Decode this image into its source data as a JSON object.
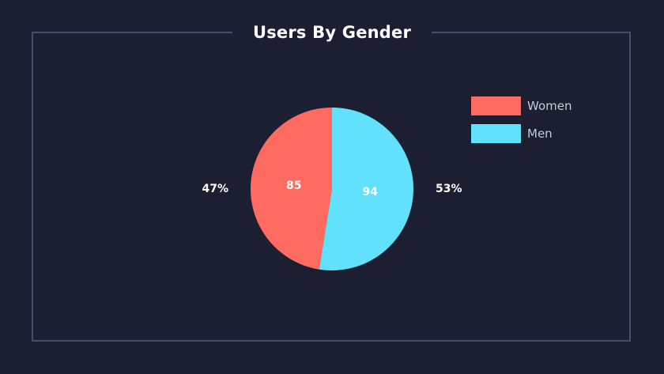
{
  "chart_data": {
    "type": "pie",
    "title": "Users By Gender",
    "slices": [
      {
        "name": "Women",
        "value": 85,
        "percent_label": "47%",
        "color": "#ff6b61"
      },
      {
        "name": "Men",
        "value": 94,
        "percent_label": "53%",
        "color": "#61e1fc"
      }
    ],
    "legend_position": "top-right"
  },
  "colors": {
    "background": "#1c1f31",
    "frame": "#4a4d63"
  }
}
